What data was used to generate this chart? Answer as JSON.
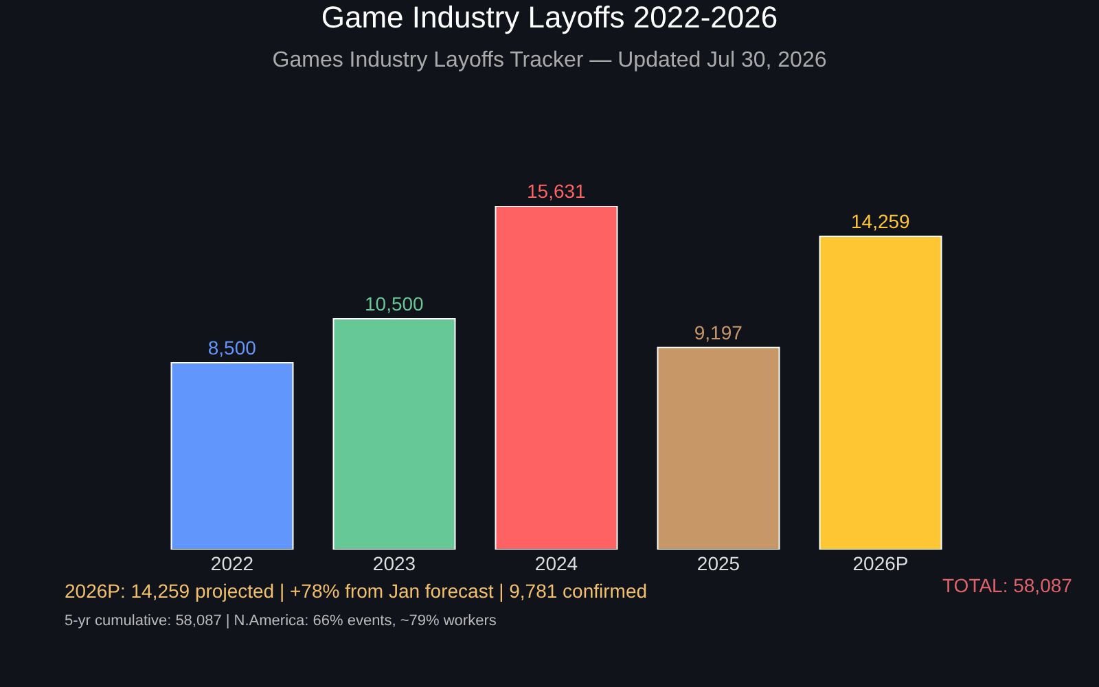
{
  "chart_data": {
    "type": "bar",
    "title": "Game Industry Layoffs 2022-2026",
    "subtitle": "Games Industry Layoffs Tracker — Updated Jul 30, 2026",
    "categories": [
      "2022",
      "2023",
      "2024",
      "2025",
      "2026P"
    ],
    "values": [
      8500,
      10500,
      15631,
      9197,
      14259
    ],
    "colors": [
      "#6197fc",
      "#66c897",
      "#ff6262",
      "#c79767",
      "#ffc634"
    ],
    "value_labels": [
      "8,500",
      "10,500",
      "15,631",
      "9,197",
      "14,259"
    ],
    "grid": false,
    "legend": false,
    "tick_labels": "x",
    "annotations": [
      "2026P: 14,259 projected | +78% from Jan forecast | 9,781 confirmed",
      "5-yr cumulative: 58,087 | N.America: 66% events, ~79% workers",
      "TOTAL: 58,087"
    ]
  }
}
